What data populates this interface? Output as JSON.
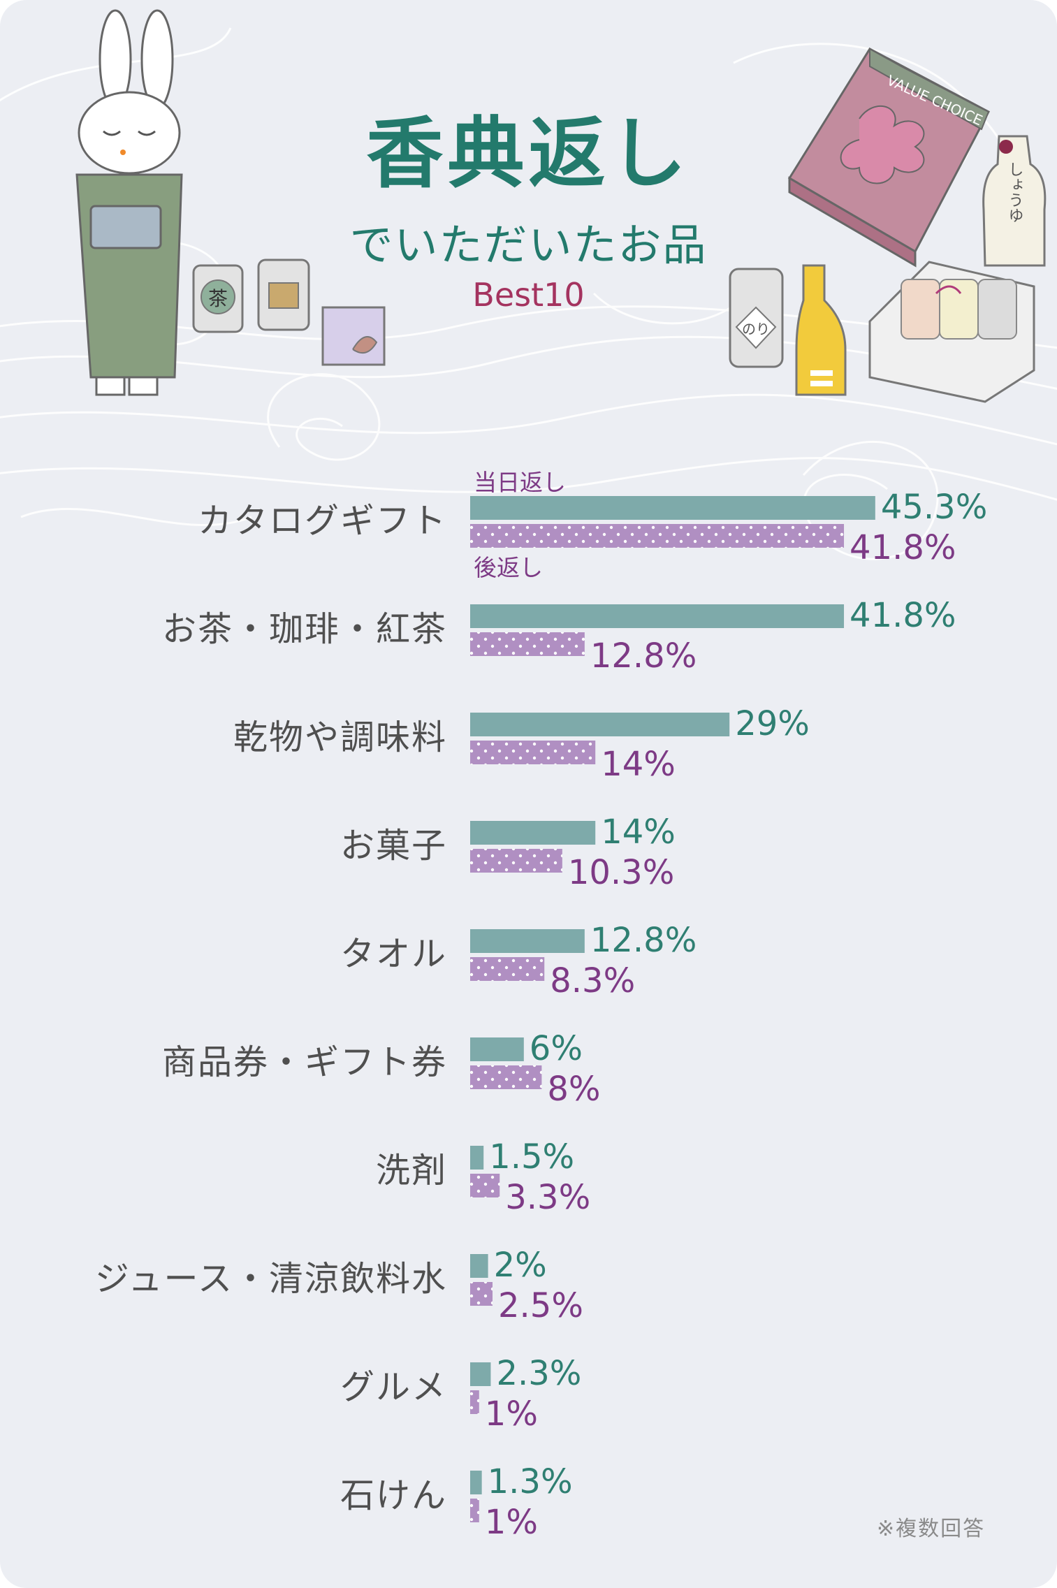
{
  "header": {
    "title": "香典返し",
    "subtitle": "でいただいたお品",
    "badge": "Best10"
  },
  "illustrations": {
    "box_label": "VALUE CHOICE",
    "tea_can_label": "茶",
    "nori_label": "のり",
    "soy_label": "しょうゆ"
  },
  "footnote": "※複数回答",
  "colors": {
    "background": "#eceef3",
    "series_a": "#7eaaaa",
    "series_b": "#b08fc2",
    "title": "#237a6c",
    "best": "#a4335f"
  },
  "chart_data": {
    "type": "bar",
    "orientation": "horizontal",
    "categories": [
      "カタログギフト",
      "お茶・珈琲・紅茶",
      "乾物や調味料",
      "お菓子",
      "タオル",
      "商品券・ギフト券",
      "洗剤",
      "ジュース・清涼飲料水",
      "グルメ",
      "石けん"
    ],
    "series": [
      {
        "name": "当日返し",
        "labels": [
          "45.3%",
          "41.8%",
          "29%",
          "14%",
          "12.8%",
          "6%",
          "1.5%",
          "2%",
          "2.3%",
          "1.3%"
        ],
        "values": [
          45.3,
          41.8,
          29,
          14,
          12.8,
          6,
          1.5,
          2,
          2.3,
          1.3
        ]
      },
      {
        "name": "後返し",
        "labels": [
          "41.8%",
          "12.8%",
          "14%",
          "10.3%",
          "8.3%",
          "8%",
          "3.3%",
          "2.5%",
          "1%",
          "1%"
        ],
        "values": [
          41.8,
          12.8,
          14,
          10.3,
          8.3,
          8,
          3.3,
          2.5,
          1,
          1
        ]
      }
    ],
    "legend_placement": "above-first-bar / below-first-bar",
    "grid": false
  }
}
